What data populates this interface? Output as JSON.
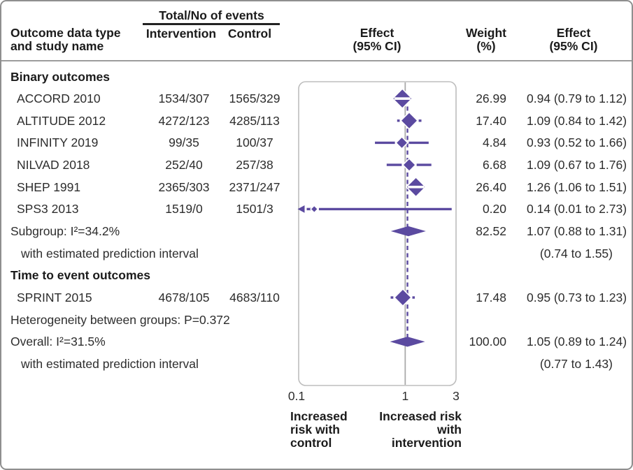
{
  "header": {
    "study_col_line1": "Outcome data type",
    "study_col_line2": "and study name",
    "events_group": "Total/No of events",
    "intervention": "Intervention",
    "control": "Control",
    "effect_line1": "Effect",
    "effect_line2": "(95% CI)",
    "weight_line1": "Weight",
    "weight_line2": "(%)"
  },
  "colors": {
    "accent": "#5b4aa0",
    "null_line": "#a9a9a9",
    "box_border": "#bdbdbd",
    "frame_border": "#8f8f8f",
    "divider": "#9c9c9c",
    "text": "#2d2d2d"
  },
  "chart_data": {
    "type": "forest",
    "scale": "log",
    "axis": {
      "min": 0.1,
      "max": 3,
      "ticks": [
        "0.1",
        "1",
        "3"
      ],
      "tick_values": [
        0.1,
        1,
        3
      ],
      "null_value": 1,
      "overall_value": 1.05
    },
    "direction_labels": {
      "left": "Increased risk with control",
      "right": "Increased risk with intervention"
    },
    "rows": [
      {
        "type": "section",
        "label": "Binary outcomes"
      },
      {
        "type": "study",
        "label": "ACCORD 2010",
        "intervention": "1534/307",
        "control": "1565/329",
        "est": 0.94,
        "lo": 0.79,
        "hi": 1.12,
        "weight": "26.99",
        "weight_value": 26.99,
        "effect": "0.94 (0.79 to 1.12)"
      },
      {
        "type": "study",
        "label": "ALTITUDE 2012",
        "intervention": "4272/123",
        "control": "4285/113",
        "est": 1.09,
        "lo": 0.84,
        "hi": 1.42,
        "weight": "17.40",
        "weight_value": 17.4,
        "effect": "1.09 (0.84 to 1.42)"
      },
      {
        "type": "study",
        "label": "INFINITY 2019",
        "intervention": "99/35",
        "control": "100/37",
        "est": 0.93,
        "lo": 0.52,
        "hi": 1.66,
        "weight": "4.84",
        "weight_value": 4.84,
        "effect": "0.93 (0.52 to 1.66)"
      },
      {
        "type": "study",
        "label": "NILVAD 2018",
        "intervention": "252/40",
        "control": "257/38",
        "est": 1.09,
        "lo": 0.67,
        "hi": 1.76,
        "weight": "6.68",
        "weight_value": 6.68,
        "effect": "1.09 (0.67 to 1.76)"
      },
      {
        "type": "study",
        "label": "SHEP 1991",
        "intervention": "2365/303",
        "control": "2371/247",
        "est": 1.26,
        "lo": 1.06,
        "hi": 1.51,
        "weight": "26.40",
        "weight_value": 26.4,
        "effect": "1.26 (1.06 to 1.51)"
      },
      {
        "type": "study",
        "label": "SPS3 2013",
        "intervention": "1519/0",
        "control": "1501/3",
        "est": 0.14,
        "lo": 0.01,
        "hi": 2.73,
        "lo_offscale": true,
        "weight": "0.20",
        "weight_value": 0.2,
        "effect": "0.14 (0.01 to 2.73)"
      },
      {
        "type": "summary",
        "label": "Subgroup: I²=34.2%",
        "est": 1.07,
        "lo": 0.88,
        "hi": 1.31,
        "weight": "82.52",
        "effect": "1.07 (0.88 to 1.31)"
      },
      {
        "type": "pred",
        "label": "with estimated prediction interval",
        "effect": "(0.74 to 1.55)"
      },
      {
        "type": "section",
        "label": "Time to event outcomes"
      },
      {
        "type": "study",
        "label": "SPRINT 2015",
        "intervention": "4678/105",
        "control": "4683/110",
        "est": 0.95,
        "lo": 0.73,
        "hi": 1.23,
        "weight": "17.48",
        "weight_value": 17.48,
        "effect": "0.95 (0.73 to 1.23)"
      },
      {
        "type": "text",
        "label": "Heterogeneity between groups: P=0.372"
      },
      {
        "type": "summary",
        "label": "Overall: I²=31.5%",
        "est": 1.05,
        "lo": 0.89,
        "hi": 1.24,
        "weight": "100.00",
        "effect": "1.05 (0.89 to 1.24)"
      },
      {
        "type": "pred",
        "label": "with estimated prediction interval",
        "effect": "(0.77 to 1.43)"
      }
    ]
  }
}
